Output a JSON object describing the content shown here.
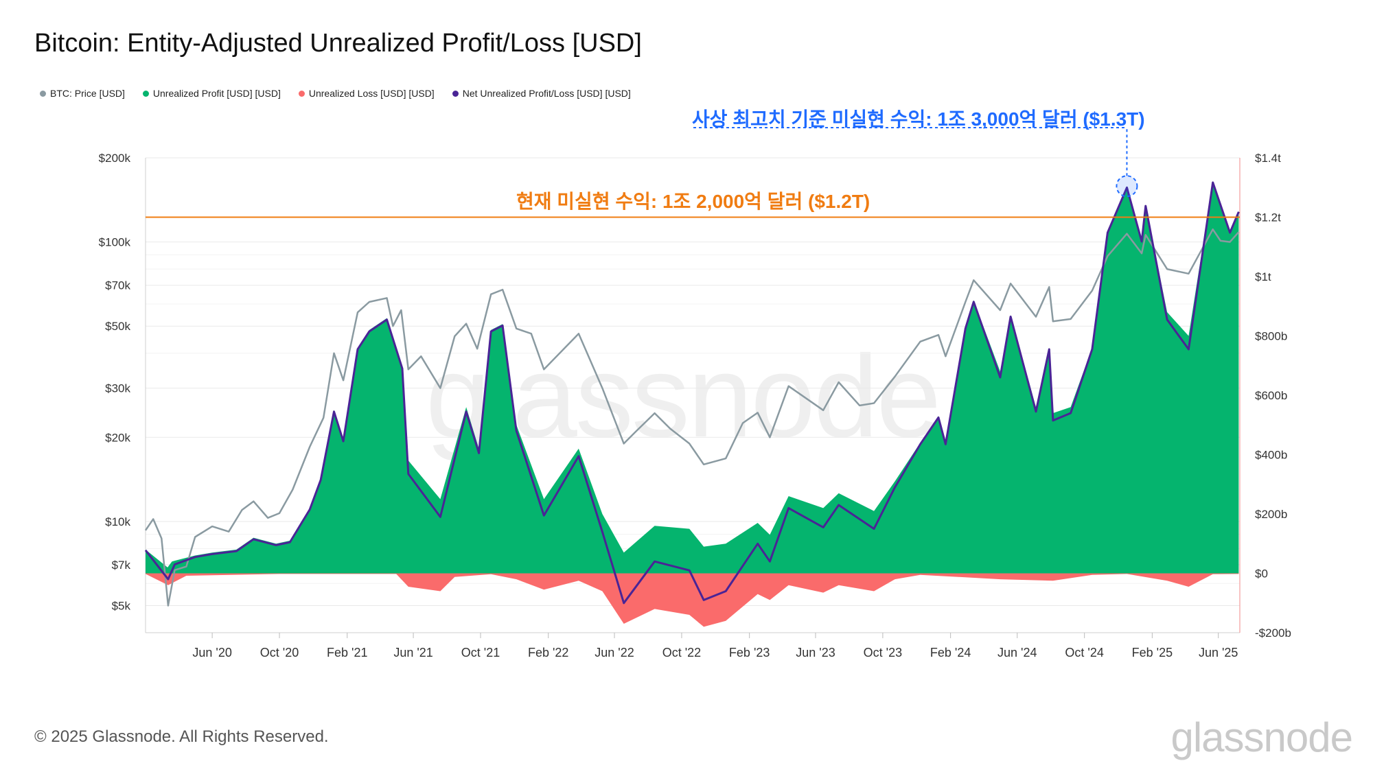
{
  "title": "Bitcoin: Entity-Adjusted Unrealized Profit/Loss [USD]",
  "legend": [
    {
      "label": "BTC: Price [USD]",
      "color": "#8a9aa1"
    },
    {
      "label": "Unrealized Profit [USD] [USD]",
      "color": "#05b46e"
    },
    {
      "label": "Unrealized Loss [USD] [USD]",
      "color": "#fa6b6b"
    },
    {
      "label": "Net Unrealized Profit/Loss [USD] [USD]",
      "color": "#4a2496"
    }
  ],
  "annotations": {
    "ath": "사상 최고치 기준 미실현 수익: 1조 3,000억 달러 ($1.3T)",
    "current": "현재 미실현 수익: 1조 2,000억 달러 ($1.2T)"
  },
  "watermark": "glassnode",
  "footer": "© 2025 Glassnode. All Rights Reserved.",
  "logo": "glassnode",
  "colors": {
    "price": "#8a9aa1",
    "profit": "#05b46e",
    "loss": "#fa6b6b",
    "net": "#4a2496",
    "ath": "#1f6bff",
    "current": "#f07c12",
    "grid": "#e9e9e9"
  },
  "chart_data": {
    "type": "area",
    "x_tick_labels": [
      "Jun '20",
      "Oct '20",
      "Feb '21",
      "Jun '21",
      "Oct '21",
      "Feb '22",
      "Jun '22",
      "Oct '22",
      "Feb '23",
      "Jun '23",
      "Oct '23",
      "Feb '24",
      "Jun '24",
      "Oct '24",
      "Feb '25",
      "Jun '25"
    ],
    "x_ticks": [
      "2020-06-01",
      "2020-10-01",
      "2021-02-01",
      "2021-06-01",
      "2021-10-01",
      "2022-02-01",
      "2022-06-01",
      "2022-10-01",
      "2023-02-01",
      "2023-06-01",
      "2023-10-01",
      "2024-02-01",
      "2024-06-01",
      "2024-10-01",
      "2025-02-01",
      "2025-06-01"
    ],
    "x_range": [
      "2020-02-01",
      "2025-07-10"
    ],
    "y_left": {
      "label": "",
      "scale": "log",
      "ticks": [
        5000,
        7000,
        10000,
        20000,
        30000,
        50000,
        70000,
        100000,
        200000
      ],
      "tick_labels": [
        "$5k",
        "$7k",
        "$10k",
        "$20k",
        "$30k",
        "$50k",
        "$70k",
        "$100k",
        "$200k"
      ],
      "range": [
        4000,
        200000
      ]
    },
    "y_right": {
      "label": "",
      "scale": "linear",
      "ticks": [
        -200,
        0,
        200,
        400,
        600,
        800,
        1000,
        1200,
        1400
      ],
      "tick_labels": [
        "-$200b",
        "$0",
        "$200b",
        "$400b",
        "$600b",
        "$800b",
        "$1t",
        "$1.2t",
        "$1.4t"
      ],
      "range": [
        -200,
        1400
      ],
      "unit": "billion USD"
    },
    "hline": {
      "value": 1200,
      "axis": "right"
    },
    "ath_marker": {
      "date": "2024-12-17",
      "value": 1300
    },
    "series": [
      {
        "name": "BTC: Price [USD]",
        "axis": "left",
        "points": [
          [
            "2020-02-01",
            9300
          ],
          [
            "2020-02-15",
            10200
          ],
          [
            "2020-03-01",
            8700
          ],
          [
            "2020-03-13",
            5000
          ],
          [
            "2020-03-25",
            6700
          ],
          [
            "2020-04-15",
            6900
          ],
          [
            "2020-05-01",
            8800
          ],
          [
            "2020-06-01",
            9600
          ],
          [
            "2020-07-01",
            9200
          ],
          [
            "2020-07-25",
            11000
          ],
          [
            "2020-08-15",
            11800
          ],
          [
            "2020-09-10",
            10300
          ],
          [
            "2020-10-01",
            10700
          ],
          [
            "2020-10-25",
            13000
          ],
          [
            "2020-11-25",
            18500
          ],
          [
            "2020-12-20",
            23500
          ],
          [
            "2021-01-08",
            40000
          ],
          [
            "2021-01-25",
            32000
          ],
          [
            "2021-02-20",
            56000
          ],
          [
            "2021-03-13",
            61000
          ],
          [
            "2021-04-14",
            63000
          ],
          [
            "2021-04-25",
            50000
          ],
          [
            "2021-05-10",
            57000
          ],
          [
            "2021-05-23",
            35000
          ],
          [
            "2021-06-15",
            39000
          ],
          [
            "2021-07-20",
            30000
          ],
          [
            "2021-08-15",
            46000
          ],
          [
            "2021-09-05",
            51000
          ],
          [
            "2021-09-25",
            41500
          ],
          [
            "2021-10-20",
            65000
          ],
          [
            "2021-11-10",
            67500
          ],
          [
            "2021-12-05",
            49000
          ],
          [
            "2022-01-01",
            47000
          ],
          [
            "2022-01-24",
            35000
          ],
          [
            "2022-03-28",
            47000
          ],
          [
            "2022-05-10",
            30000
          ],
          [
            "2022-06-18",
            19000
          ],
          [
            "2022-07-10",
            21000
          ],
          [
            "2022-08-13",
            24400
          ],
          [
            "2022-09-10",
            21500
          ],
          [
            "2022-10-15",
            19000
          ],
          [
            "2022-11-10",
            16000
          ],
          [
            "2022-12-20",
            16800
          ],
          [
            "2023-01-20",
            22500
          ],
          [
            "2023-02-16",
            24500
          ],
          [
            "2023-03-10",
            20000
          ],
          [
            "2023-04-13",
            30500
          ],
          [
            "2023-06-15",
            25000
          ],
          [
            "2023-07-13",
            31500
          ],
          [
            "2023-08-20",
            26000
          ],
          [
            "2023-09-15",
            26500
          ],
          [
            "2023-10-23",
            33000
          ],
          [
            "2023-12-08",
            44000
          ],
          [
            "2024-01-10",
            46500
          ],
          [
            "2024-01-23",
            39000
          ],
          [
            "2024-02-28",
            61000
          ],
          [
            "2024-03-14",
            73000
          ],
          [
            "2024-05-01",
            57000
          ],
          [
            "2024-05-20",
            71000
          ],
          [
            "2024-07-05",
            54000
          ],
          [
            "2024-07-29",
            69000
          ],
          [
            "2024-08-05",
            52000
          ],
          [
            "2024-09-06",
            53000
          ],
          [
            "2024-10-15",
            67000
          ],
          [
            "2024-11-12",
            89000
          ],
          [
            "2024-12-17",
            107000
          ],
          [
            "2025-01-13",
            91000
          ],
          [
            "2025-01-20",
            106000
          ],
          [
            "2025-02-28",
            80000
          ],
          [
            "2025-04-08",
            77000
          ],
          [
            "2025-05-22",
            111000
          ],
          [
            "2025-06-05",
            101000
          ],
          [
            "2025-06-22",
            100000
          ],
          [
            "2025-07-08",
            108500
          ]
        ]
      },
      {
        "name": "Unrealized Profit [USD] [USD]",
        "axis": "right",
        "points": [
          [
            "2020-02-01",
            80
          ],
          [
            "2020-03-12",
            20
          ],
          [
            "2020-03-20",
            40
          ],
          [
            "2020-05-01",
            60
          ],
          [
            "2020-06-01",
            70
          ],
          [
            "2020-07-15",
            80
          ],
          [
            "2020-08-15",
            120
          ],
          [
            "2020-09-25",
            100
          ],
          [
            "2020-10-20",
            110
          ],
          [
            "2020-11-25",
            220
          ],
          [
            "2020-12-15",
            320
          ],
          [
            "2021-01-08",
            550
          ],
          [
            "2021-01-25",
            450
          ],
          [
            "2021-02-20",
            760
          ],
          [
            "2021-03-13",
            820
          ],
          [
            "2021-04-14",
            860
          ],
          [
            "2021-05-12",
            700
          ],
          [
            "2021-05-23",
            380
          ],
          [
            "2021-07-20",
            250
          ],
          [
            "2021-09-05",
            560
          ],
          [
            "2021-09-28",
            420
          ],
          [
            "2021-10-20",
            820
          ],
          [
            "2021-11-10",
            840
          ],
          [
            "2021-12-05",
            500
          ],
          [
            "2022-01-24",
            250
          ],
          [
            "2022-03-28",
            420
          ],
          [
            "2022-05-10",
            200
          ],
          [
            "2022-06-18",
            70
          ],
          [
            "2022-08-13",
            160
          ],
          [
            "2022-10-15",
            150
          ],
          [
            "2022-11-10",
            90
          ],
          [
            "2022-12-20",
            100
          ],
          [
            "2023-02-16",
            170
          ],
          [
            "2023-03-10",
            130
          ],
          [
            "2023-04-13",
            260
          ],
          [
            "2023-06-15",
            220
          ],
          [
            "2023-07-13",
            270
          ],
          [
            "2023-09-15",
            210
          ],
          [
            "2023-10-23",
            310
          ],
          [
            "2023-12-08",
            440
          ],
          [
            "2024-01-10",
            530
          ],
          [
            "2024-01-23",
            440
          ],
          [
            "2024-02-28",
            830
          ],
          [
            "2024-03-14",
            920
          ],
          [
            "2024-05-01",
            680
          ],
          [
            "2024-05-20",
            870
          ],
          [
            "2024-07-05",
            560
          ],
          [
            "2024-07-29",
            760
          ],
          [
            "2024-08-05",
            540
          ],
          [
            "2024-09-06",
            560
          ],
          [
            "2024-10-15",
            760
          ],
          [
            "2024-11-12",
            1150
          ],
          [
            "2024-12-17",
            1300
          ],
          [
            "2025-01-13",
            1120
          ],
          [
            "2025-01-20",
            1240
          ],
          [
            "2025-02-28",
            880
          ],
          [
            "2025-04-08",
            800
          ],
          [
            "2025-05-22",
            1320
          ],
          [
            "2025-06-22",
            1150
          ],
          [
            "2025-07-08",
            1220
          ]
        ]
      },
      {
        "name": "Unrealized Loss [USD] [USD]",
        "axis": "right",
        "points": [
          [
            "2020-02-01",
            -2
          ],
          [
            "2020-03-13",
            -40
          ],
          [
            "2020-04-15",
            -8
          ],
          [
            "2020-10-01",
            -2
          ],
          [
            "2021-05-01",
            -2
          ],
          [
            "2021-05-23",
            -45
          ],
          [
            "2021-07-20",
            -60
          ],
          [
            "2021-08-15",
            -12
          ],
          [
            "2021-10-20",
            -3
          ],
          [
            "2021-12-05",
            -20
          ],
          [
            "2022-01-24",
            -55
          ],
          [
            "2022-03-28",
            -25
          ],
          [
            "2022-05-10",
            -60
          ],
          [
            "2022-06-18",
            -170
          ],
          [
            "2022-08-13",
            -120
          ],
          [
            "2022-10-15",
            -140
          ],
          [
            "2022-11-10",
            -180
          ],
          [
            "2022-12-20",
            -160
          ],
          [
            "2023-02-16",
            -70
          ],
          [
            "2023-03-10",
            -90
          ],
          [
            "2023-04-13",
            -40
          ],
          [
            "2023-06-15",
            -65
          ],
          [
            "2023-07-13",
            -40
          ],
          [
            "2023-09-15",
            -60
          ],
          [
            "2023-10-23",
            -20
          ],
          [
            "2023-12-08",
            -5
          ],
          [
            "2024-05-01",
            -20
          ],
          [
            "2024-08-05",
            -25
          ],
          [
            "2024-10-15",
            -5
          ],
          [
            "2024-12-17",
            -2
          ],
          [
            "2025-02-28",
            -25
          ],
          [
            "2025-04-08",
            -45
          ],
          [
            "2025-05-22",
            -3
          ],
          [
            "2025-07-08",
            -2
          ]
        ]
      },
      {
        "name": "Net Unrealized Profit/Loss [USD] [USD]",
        "axis": "right",
        "points": [
          [
            "2020-02-01",
            78
          ],
          [
            "2020-03-13",
            -20
          ],
          [
            "2020-03-25",
            30
          ],
          [
            "2020-05-01",
            55
          ],
          [
            "2020-06-01",
            65
          ],
          [
            "2020-07-15",
            75
          ],
          [
            "2020-08-15",
            115
          ],
          [
            "2020-09-25",
            95
          ],
          [
            "2020-10-20",
            105
          ],
          [
            "2020-11-25",
            215
          ],
          [
            "2020-12-15",
            315
          ],
          [
            "2021-01-08",
            545
          ],
          [
            "2021-01-25",
            445
          ],
          [
            "2021-02-20",
            755
          ],
          [
            "2021-03-13",
            815
          ],
          [
            "2021-04-14",
            855
          ],
          [
            "2021-05-12",
            690
          ],
          [
            "2021-05-23",
            335
          ],
          [
            "2021-07-20",
            190
          ],
          [
            "2021-09-05",
            545
          ],
          [
            "2021-09-28",
            405
          ],
          [
            "2021-10-20",
            815
          ],
          [
            "2021-11-10",
            835
          ],
          [
            "2021-12-05",
            480
          ],
          [
            "2022-01-24",
            195
          ],
          [
            "2022-03-28",
            395
          ],
          [
            "2022-05-10",
            140
          ],
          [
            "2022-06-18",
            -100
          ],
          [
            "2022-08-13",
            40
          ],
          [
            "2022-10-15",
            10
          ],
          [
            "2022-11-10",
            -90
          ],
          [
            "2022-12-20",
            -60
          ],
          [
            "2023-02-16",
            100
          ],
          [
            "2023-03-10",
            40
          ],
          [
            "2023-04-13",
            220
          ],
          [
            "2023-06-15",
            155
          ],
          [
            "2023-07-13",
            230
          ],
          [
            "2023-09-15",
            150
          ],
          [
            "2023-10-23",
            290
          ],
          [
            "2023-12-08",
            435
          ],
          [
            "2024-01-10",
            525
          ],
          [
            "2024-01-23",
            435
          ],
          [
            "2024-02-28",
            825
          ],
          [
            "2024-03-14",
            915
          ],
          [
            "2024-05-01",
            660
          ],
          [
            "2024-05-20",
            865
          ],
          [
            "2024-07-05",
            545
          ],
          [
            "2024-07-29",
            755
          ],
          [
            "2024-08-05",
            515
          ],
          [
            "2024-09-06",
            540
          ],
          [
            "2024-10-15",
            755
          ],
          [
            "2024-11-12",
            1148
          ],
          [
            "2024-12-17",
            1300
          ],
          [
            "2025-01-13",
            1118
          ],
          [
            "2025-01-20",
            1238
          ],
          [
            "2025-02-28",
            855
          ],
          [
            "2025-04-08",
            755
          ],
          [
            "2025-05-22",
            1317
          ],
          [
            "2025-06-22",
            1148
          ],
          [
            "2025-07-08",
            1218
          ]
        ]
      }
    ]
  }
}
